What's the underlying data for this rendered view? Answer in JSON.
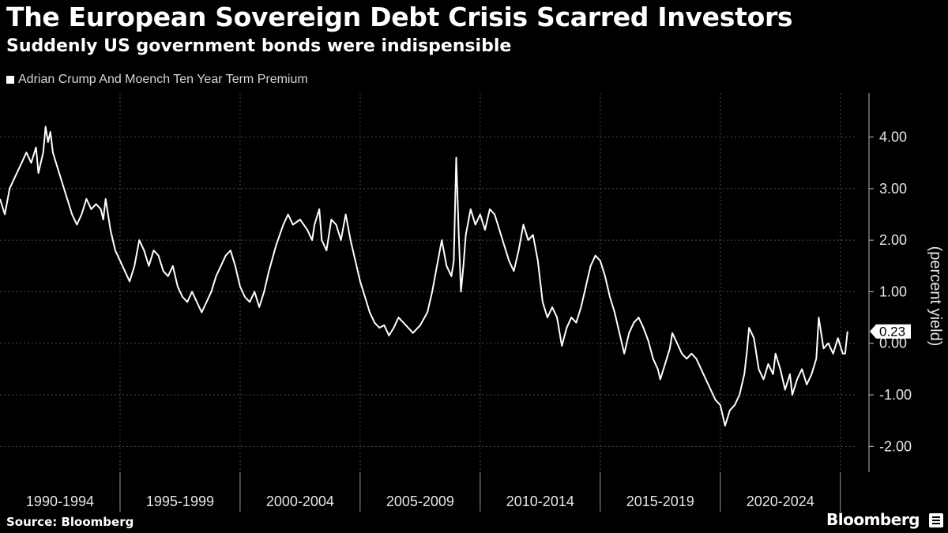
{
  "header": {
    "title": "The European Sovereign Debt Crisis Scarred Investors",
    "subtitle": "Suddenly US government bonds were indispensible"
  },
  "legend": {
    "label": "Adrian Crump And Moench Ten Year Term Premium"
  },
  "footer": {
    "source": "Source: Bloomberg",
    "brand": "Bloomberg"
  },
  "colors": {
    "background": "#000000",
    "line": "#ffffff",
    "grid": "#4a4a4a"
  },
  "chart_data": {
    "type": "line",
    "title": "The European Sovereign Debt Crisis Scarred Investors",
    "subtitle": "Suddenly US government bonds were indispensible",
    "ylabel": "(percent yield)",
    "xlabel": "",
    "xlim": [
      1990.0,
      2025.7
    ],
    "ylim": [
      -2.5,
      4.85
    ],
    "y_ticks": [
      -2,
      -1,
      0,
      1,
      2,
      3,
      4
    ],
    "y_tick_labels": [
      "-2.00",
      "-1.00",
      "0.00",
      "1.00",
      "2.00",
      "3.00",
      "4.00"
    ],
    "x_tick_labels": [
      "1990-1994",
      "1995-1999",
      "2000-2004",
      "2005-2009",
      "2010-2014",
      "2015-2019",
      "2020-2024"
    ],
    "x_tick_starts": [
      1990,
      1995,
      2000,
      2005,
      2010,
      2015,
      2020,
      2025
    ],
    "last_value_label": "0.23",
    "grid": true,
    "legend_position": "top-left",
    "series": [
      {
        "name": "Adrian Crump And Moench Ten Year Term Premium",
        "points": [
          [
            1990.0,
            2.8
          ],
          [
            1990.2,
            2.5
          ],
          [
            1990.4,
            3.0
          ],
          [
            1990.7,
            3.3
          ],
          [
            1990.9,
            3.5
          ],
          [
            1991.1,
            3.7
          ],
          [
            1991.3,
            3.5
          ],
          [
            1991.5,
            3.8
          ],
          [
            1991.6,
            3.3
          ],
          [
            1991.8,
            3.7
          ],
          [
            1991.9,
            4.2
          ],
          [
            1992.0,
            3.9
          ],
          [
            1992.1,
            4.1
          ],
          [
            1992.2,
            3.7
          ],
          [
            1992.4,
            3.4
          ],
          [
            1992.6,
            3.1
          ],
          [
            1992.8,
            2.8
          ],
          [
            1993.0,
            2.5
          ],
          [
            1993.2,
            2.3
          ],
          [
            1993.4,
            2.5
          ],
          [
            1993.6,
            2.8
          ],
          [
            1993.8,
            2.6
          ],
          [
            1994.0,
            2.7
          ],
          [
            1994.2,
            2.6
          ],
          [
            1994.3,
            2.4
          ],
          [
            1994.4,
            2.8
          ],
          [
            1994.6,
            2.2
          ],
          [
            1994.8,
            1.8
          ],
          [
            1995.0,
            1.6
          ],
          [
            1995.2,
            1.4
          ],
          [
            1995.4,
            1.2
          ],
          [
            1995.6,
            1.5
          ],
          [
            1995.8,
            2.0
          ],
          [
            1996.0,
            1.8
          ],
          [
            1996.2,
            1.5
          ],
          [
            1996.4,
            1.8
          ],
          [
            1996.6,
            1.7
          ],
          [
            1996.8,
            1.4
          ],
          [
            1997.0,
            1.3
          ],
          [
            1997.2,
            1.5
          ],
          [
            1997.4,
            1.1
          ],
          [
            1997.6,
            0.9
          ],
          [
            1997.8,
            0.8
          ],
          [
            1998.0,
            1.0
          ],
          [
            1998.2,
            0.8
          ],
          [
            1998.4,
            0.6
          ],
          [
            1998.6,
            0.8
          ],
          [
            1998.8,
            1.0
          ],
          [
            1999.0,
            1.3
          ],
          [
            1999.2,
            1.5
          ],
          [
            1999.4,
            1.7
          ],
          [
            1999.6,
            1.8
          ],
          [
            1999.8,
            1.5
          ],
          [
            2000.0,
            1.1
          ],
          [
            2000.2,
            0.9
          ],
          [
            2000.4,
            0.8
          ],
          [
            2000.6,
            1.0
          ],
          [
            2000.8,
            0.7
          ],
          [
            2001.0,
            1.0
          ],
          [
            2001.2,
            1.4
          ],
          [
            2001.5,
            1.9
          ],
          [
            2001.8,
            2.3
          ],
          [
            2002.0,
            2.5
          ],
          [
            2002.2,
            2.3
          ],
          [
            2002.5,
            2.4
          ],
          [
            2002.8,
            2.2
          ],
          [
            2003.0,
            2.0
          ],
          [
            2003.1,
            2.3
          ],
          [
            2003.3,
            2.6
          ],
          [
            2003.4,
            2.0
          ],
          [
            2003.6,
            1.8
          ],
          [
            2003.8,
            2.4
          ],
          [
            2004.0,
            2.3
          ],
          [
            2004.2,
            2.0
          ],
          [
            2004.4,
            2.5
          ],
          [
            2004.6,
            2.0
          ],
          [
            2004.8,
            1.6
          ],
          [
            2005.0,
            1.2
          ],
          [
            2005.2,
            0.9
          ],
          [
            2005.4,
            0.6
          ],
          [
            2005.6,
            0.4
          ],
          [
            2005.8,
            0.3
          ],
          [
            2006.0,
            0.35
          ],
          [
            2006.2,
            0.15
          ],
          [
            2006.4,
            0.3
          ],
          [
            2006.6,
            0.5
          ],
          [
            2006.8,
            0.4
          ],
          [
            2007.0,
            0.3
          ],
          [
            2007.2,
            0.2
          ],
          [
            2007.5,
            0.35
          ],
          [
            2007.8,
            0.6
          ],
          [
            2008.0,
            1.0
          ],
          [
            2008.2,
            1.5
          ],
          [
            2008.4,
            2.0
          ],
          [
            2008.6,
            1.5
          ],
          [
            2008.8,
            1.3
          ],
          [
            2008.9,
            1.6
          ],
          [
            2009.0,
            3.6
          ],
          [
            2009.1,
            2.2
          ],
          [
            2009.2,
            1.0
          ],
          [
            2009.3,
            1.5
          ],
          [
            2009.4,
            2.1
          ],
          [
            2009.6,
            2.6
          ],
          [
            2009.8,
            2.3
          ],
          [
            2010.0,
            2.5
          ],
          [
            2010.2,
            2.2
          ],
          [
            2010.4,
            2.6
          ],
          [
            2010.6,
            2.5
          ],
          [
            2010.8,
            2.2
          ],
          [
            2011.0,
            1.9
          ],
          [
            2011.2,
            1.6
          ],
          [
            2011.4,
            1.4
          ],
          [
            2011.6,
            1.8
          ],
          [
            2011.8,
            2.3
          ],
          [
            2012.0,
            2.0
          ],
          [
            2012.2,
            2.1
          ],
          [
            2012.4,
            1.6
          ],
          [
            2012.6,
            0.8
          ],
          [
            2012.8,
            0.5
          ],
          [
            2013.0,
            0.7
          ],
          [
            2013.2,
            0.5
          ],
          [
            2013.4,
            -0.05
          ],
          [
            2013.6,
            0.3
          ],
          [
            2013.8,
            0.5
          ],
          [
            2014.0,
            0.4
          ],
          [
            2014.2,
            0.7
          ],
          [
            2014.4,
            1.1
          ],
          [
            2014.6,
            1.5
          ],
          [
            2014.8,
            1.7
          ],
          [
            2015.0,
            1.6
          ],
          [
            2015.2,
            1.3
          ],
          [
            2015.4,
            0.9
          ],
          [
            2015.6,
            0.6
          ],
          [
            2015.8,
            0.2
          ],
          [
            2016.0,
            -0.2
          ],
          [
            2016.2,
            0.2
          ],
          [
            2016.4,
            0.4
          ],
          [
            2016.6,
            0.5
          ],
          [
            2016.8,
            0.3
          ],
          [
            2017.0,
            0.05
          ],
          [
            2017.2,
            -0.3
          ],
          [
            2017.4,
            -0.5
          ],
          [
            2017.5,
            -0.7
          ],
          [
            2017.7,
            -0.4
          ],
          [
            2017.9,
            -0.1
          ],
          [
            2018.0,
            0.2
          ],
          [
            2018.2,
            0.0
          ],
          [
            2018.4,
            -0.2
          ],
          [
            2018.6,
            -0.3
          ],
          [
            2018.8,
            -0.2
          ],
          [
            2019.0,
            -0.3
          ],
          [
            2019.2,
            -0.5
          ],
          [
            2019.4,
            -0.7
          ],
          [
            2019.6,
            -0.9
          ],
          [
            2019.8,
            -1.1
          ],
          [
            2020.0,
            -1.2
          ],
          [
            2020.2,
            -1.6
          ],
          [
            2020.4,
            -1.3
          ],
          [
            2020.6,
            -1.2
          ],
          [
            2020.8,
            -1.0
          ],
          [
            2021.0,
            -0.6
          ],
          [
            2021.1,
            -0.2
          ],
          [
            2021.2,
            0.3
          ],
          [
            2021.4,
            0.1
          ],
          [
            2021.6,
            -0.5
          ],
          [
            2021.8,
            -0.7
          ],
          [
            2022.0,
            -0.4
          ],
          [
            2022.2,
            -0.6
          ],
          [
            2022.3,
            -0.2
          ],
          [
            2022.5,
            -0.5
          ],
          [
            2022.7,
            -0.9
          ],
          [
            2022.9,
            -0.6
          ],
          [
            2023.0,
            -1.0
          ],
          [
            2023.2,
            -0.7
          ],
          [
            2023.4,
            -0.5
          ],
          [
            2023.6,
            -0.8
          ],
          [
            2023.8,
            -0.6
          ],
          [
            2024.0,
            -0.3
          ],
          [
            2024.1,
            0.5
          ],
          [
            2024.3,
            -0.1
          ],
          [
            2024.5,
            0.0
          ],
          [
            2024.7,
            -0.2
          ],
          [
            2024.9,
            0.1
          ],
          [
            2025.1,
            -0.2
          ],
          [
            2025.2,
            -0.2
          ],
          [
            2025.3,
            0.23
          ]
        ]
      }
    ]
  }
}
